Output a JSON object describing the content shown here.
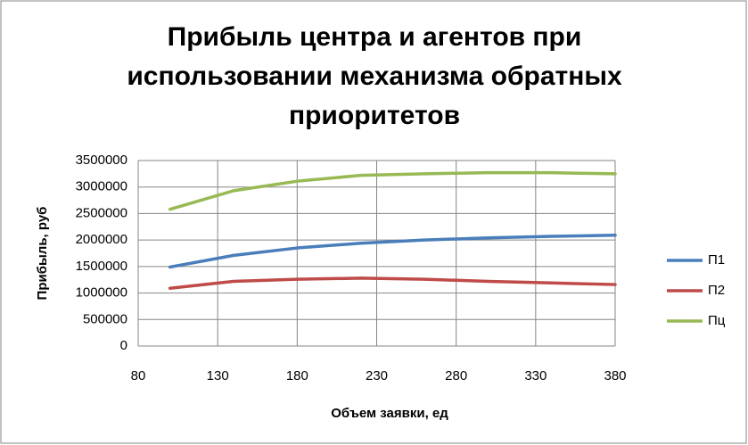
{
  "chart_data": {
    "type": "line",
    "title": "Прибыль центра и агентов при использовании механизма обратных приоритетов",
    "x_label": "Объем заявки, ед",
    "y_label": "Прибыль, руб",
    "x": [
      100,
      140,
      180,
      220,
      260,
      300,
      340,
      380
    ],
    "series": [
      {
        "name": "П1",
        "color": "#4a7ebb",
        "values": [
          1490000,
          1710000,
          1850000,
          1940000,
          2000000,
          2040000,
          2070000,
          2090000
        ]
      },
      {
        "name": "П2",
        "color": "#be4b48",
        "values": [
          1090000,
          1220000,
          1260000,
          1280000,
          1260000,
          1220000,
          1190000,
          1160000
        ]
      },
      {
        "name": "Пц",
        "color": "#98b954",
        "values": [
          2580000,
          2930000,
          3110000,
          3220000,
          3250000,
          3270000,
          3270000,
          3250000
        ]
      }
    ],
    "xlim": [
      80,
      380
    ],
    "xticks": [
      80,
      130,
      180,
      230,
      280,
      330,
      380
    ],
    "ylim": [
      0,
      3500000
    ],
    "yticks": [
      0,
      500000,
      1000000,
      1500000,
      2000000,
      2500000,
      3000000,
      3500000
    ],
    "grid": true,
    "legend": "right"
  }
}
